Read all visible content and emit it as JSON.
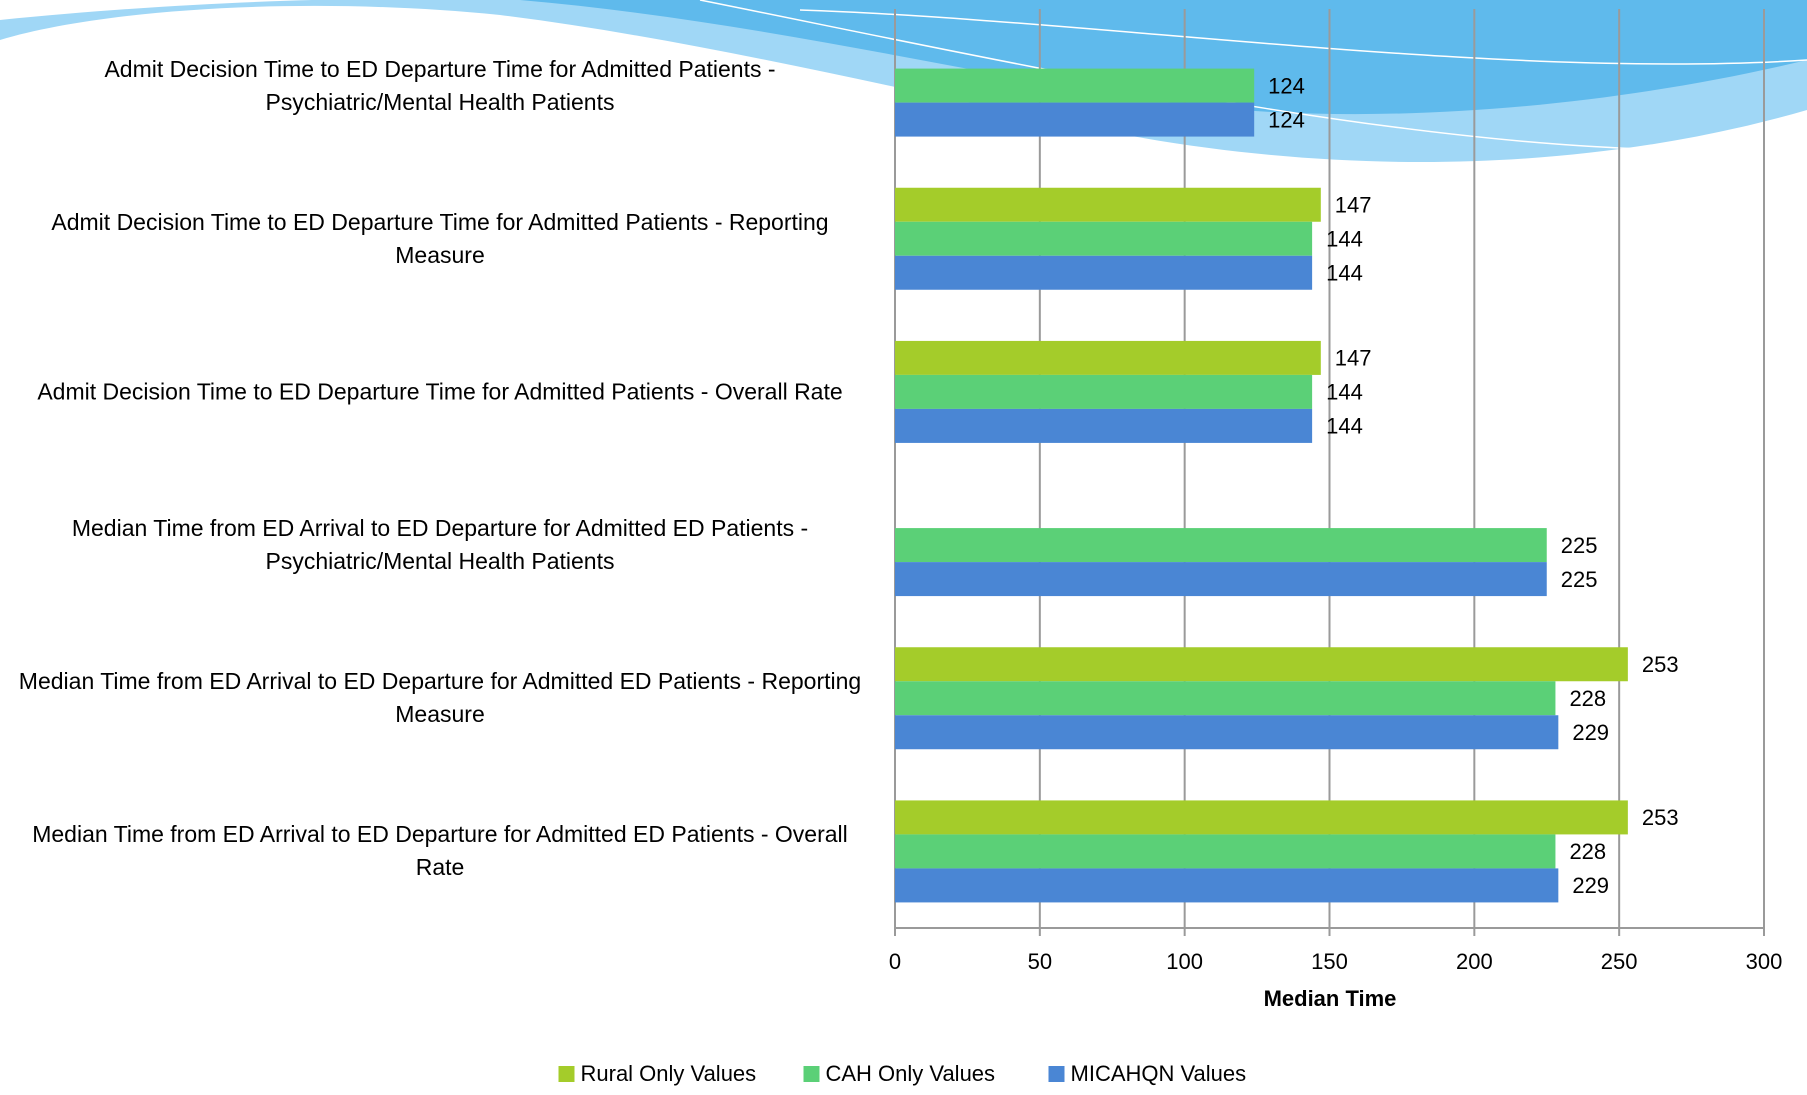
{
  "chart_data": {
    "type": "hbar",
    "categories": [
      "Admit Decision Time to ED Departure Time for Admitted Patients - Psychiatric/Mental Health Patients",
      "Admit Decision Time to ED Departure Time for Admitted Patients - Reporting Measure",
      "Admit Decision Time to ED Departure Time for Admitted Patients - Overall Rate",
      "Median Time from ED Arrival to ED Departure for Admitted ED Patients - Psychiatric/Mental Health Patients",
      "Median Time from ED Arrival to ED Departure for Admitted ED Patients - Reporting Measure",
      "Median Time from ED Arrival to ED Departure for Admitted ED Patients - Overall Rate"
    ],
    "series": [
      {
        "name": "Rural Only Values",
        "color": "#a4cc2a",
        "values": [
          null,
          147,
          147,
          null,
          253,
          253
        ]
      },
      {
        "name": "CAH Only Values",
        "color": "#5bd077",
        "values": [
          124,
          144,
          144,
          225,
          228,
          228
        ]
      },
      {
        "name": "MICAHQN Values",
        "color": "#4a86d4",
        "values": [
          124,
          144,
          144,
          225,
          229,
          229
        ]
      }
    ],
    "xlabel": "Median Time",
    "xlim": [
      0,
      300
    ],
    "xticks": [
      0,
      50,
      100,
      150,
      200,
      250,
      300
    ],
    "grid": true,
    "legend": "bottom"
  }
}
